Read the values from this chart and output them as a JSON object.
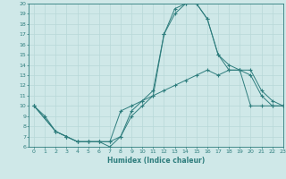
{
  "title": "",
  "xlabel": "Humidex (Indice chaleur)",
  "xlim": [
    -0.5,
    23
  ],
  "ylim": [
    6,
    20
  ],
  "xticks": [
    0,
    1,
    2,
    3,
    4,
    5,
    6,
    7,
    8,
    9,
    10,
    11,
    12,
    13,
    14,
    15,
    16,
    17,
    18,
    19,
    20,
    21,
    22,
    23
  ],
  "yticks": [
    6,
    7,
    8,
    9,
    10,
    11,
    12,
    13,
    14,
    15,
    16,
    17,
    18,
    19,
    20
  ],
  "bg_color": "#cfe8e8",
  "line_color": "#2e7d7d",
  "grid_color": "#b8d8d8",
  "line1_x": [
    0,
    1,
    2,
    3,
    4,
    5,
    6,
    7,
    8,
    9,
    10,
    11,
    12,
    13,
    14,
    15,
    16,
    17,
    18,
    19,
    20,
    21,
    22,
    23
  ],
  "line1_y": [
    10,
    9,
    7.5,
    7,
    6.5,
    6.5,
    6.5,
    6.5,
    9.5,
    10,
    10.5,
    11,
    11.5,
    12,
    12.5,
    13,
    13.5,
    13,
    13.5,
    13.5,
    10,
    10,
    10,
    10
  ],
  "line2_x": [
    0,
    2,
    3,
    4,
    5,
    6,
    7,
    8,
    9,
    10,
    11,
    12,
    13,
    14,
    15,
    16,
    17,
    18,
    19,
    20,
    21,
    22,
    23
  ],
  "line2_y": [
    10,
    7.5,
    7,
    6.5,
    6.5,
    6.5,
    6.5,
    7,
    9.5,
    10.5,
    11.5,
    17,
    19.5,
    20,
    20,
    18.5,
    15,
    14,
    13.5,
    13.5,
    11.5,
    10.5,
    10
  ],
  "line3_x": [
    0,
    2,
    3,
    4,
    5,
    6,
    7,
    8,
    9,
    10,
    11,
    12,
    13,
    14,
    15,
    16,
    17,
    18,
    19,
    20,
    21,
    22,
    23
  ],
  "line3_y": [
    10,
    7.5,
    7,
    6.5,
    6.5,
    6.5,
    6,
    7,
    9,
    10,
    11,
    17,
    19,
    20,
    20,
    18.5,
    15,
    13.5,
    13.5,
    13,
    11,
    10,
    10
  ]
}
